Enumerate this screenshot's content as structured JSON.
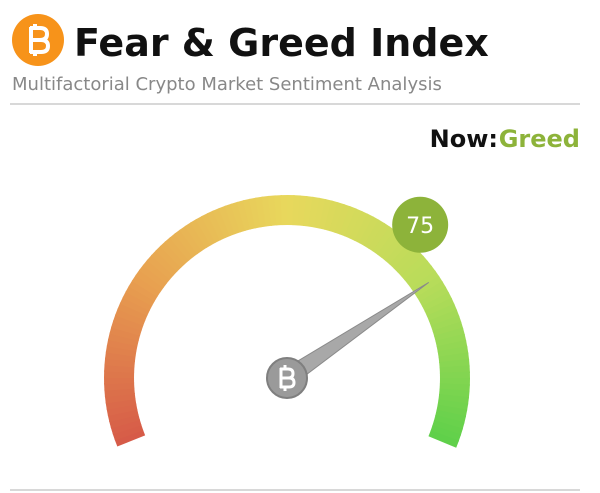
{
  "chart_data": {
    "type": "gauge",
    "title": "Fear & Greed Index",
    "subtitle": "Multifactorial Crypto Market Sentiment Analysis",
    "status_label": "Now:",
    "status": "Greed",
    "value": 75,
    "ylim": [
      0,
      100
    ],
    "color": "#8db33a"
  }
}
